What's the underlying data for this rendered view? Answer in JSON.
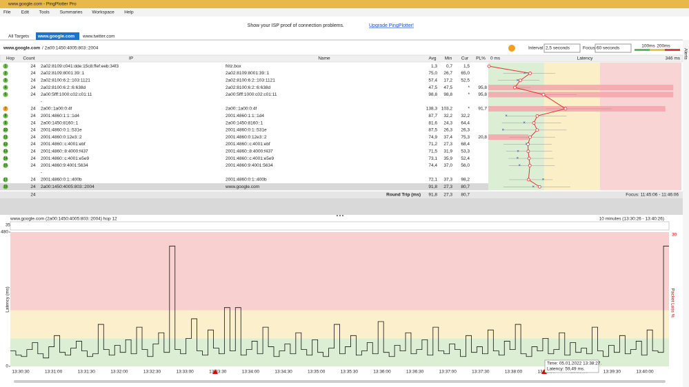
{
  "window": {
    "title": "www.google.com - PingPlotter Pro",
    "menu": [
      "File",
      "Edit",
      "Tools",
      "Summaries",
      "Workspace",
      "Help"
    ]
  },
  "banner": {
    "text": "Show your ISP proof of connection problems.",
    "link": "Upgrade PingPlotter!"
  },
  "tabs": [
    "All Targets",
    "www.google.com",
    "www.twitter.com"
  ],
  "toolbar": {
    "target": "www.google.com",
    "address": "/ 2a00:1450:4005:803::2004",
    "interval_label": "Interval",
    "interval": "2,5 seconds",
    "focus_label": "Focus",
    "focus": "60 seconds",
    "scale": [
      "100ms",
      "200ms"
    ],
    "side": "Alerts"
  },
  "table": {
    "columns": [
      "Hop",
      "Count",
      "IP",
      "Name",
      "Avg",
      "Min",
      "Cur",
      "PL%",
      "0 ms",
      "Latency",
      "346 ms"
    ],
    "rows": [
      [
        "1",
        "24",
        "2a02:8109:c041:dde:15c8:ffef:eeb:34f3",
        "fritz.box",
        "1,3",
        "0,7",
        "1,5",
        ""
      ],
      [
        "2",
        "24",
        "2a02:8109:8001:39::1",
        "2a02:8109:8001:39::1",
        "75,0",
        "26,7",
        "65,0",
        ""
      ],
      [
        "3",
        "24",
        "2a02:8100:6:2::103:1121",
        "2a02:8100:6:2::103:1121",
        "57,4",
        "17,2",
        "52,5",
        ""
      ],
      [
        "4",
        "24",
        "2a02:8100:6:2::6:638d",
        "2a02:8100:6:2::6:638d",
        "47,5",
        "47,5",
        "*",
        "95,8"
      ],
      [
        "5",
        "24",
        "2a00:5fff:1000:c02:c01:11",
        "2a00:5fff:1000:c02:c01:11",
        "98,8",
        "98,8",
        "*",
        "95,8"
      ],
      [
        "",
        "",
        "-",
        "",
        "",
        "",
        "",
        ""
      ],
      [
        "7",
        "24",
        "2a00::1a00:0:4f",
        "2a00::1a00:0:4f",
        "138,3",
        "103,2",
        "*",
        "91,7"
      ],
      [
        "8",
        "24",
        "2001:4860:1:1::1d4",
        "2001:4860:1:1::1d4",
        "87,7",
        "32,2",
        "32,2",
        ""
      ],
      [
        "9",
        "24",
        "2a00:1450:8160::1",
        "2a00:1450:8160::1",
        "81,6",
        "24,3",
        "64,4",
        ""
      ],
      [
        "10",
        "24",
        "2001:4860:0:1::531e",
        "2001:4860:0:1::531e",
        "87,5",
        "26,3",
        "26,3",
        ""
      ],
      [
        "11",
        "24",
        "2001:4860:0:12e3::2",
        "2001:4860:0:12e3::2",
        "74,9",
        "37,4",
        "75,3",
        "20,8"
      ],
      [
        "12",
        "24",
        "2001:4860::c:4001:ebf",
        "2001:4860::c:4001:ebf",
        "71,2",
        "27,3",
        "68,4",
        ""
      ],
      [
        "13",
        "24",
        "2001:4860::8:4000:f437",
        "2001:4860::8:4000:f437",
        "71,5",
        "31,9",
        "53,3",
        ""
      ],
      [
        "14",
        "24",
        "2001:4860::c:4001:e5e9",
        "2001:4860::c:4001:e5e9",
        "73,1",
        "35,9",
        "52,4",
        ""
      ],
      [
        "15",
        "24",
        "2001:4860:9:4001:5634",
        "2001:4860:9:4001:5634",
        "74,4",
        "37,0",
        "56,0",
        ""
      ],
      [
        "",
        "",
        "-",
        "",
        "",
        "",
        "",
        ""
      ],
      [
        "17",
        "24",
        "2001:4860:0:1::400b",
        "2001:4860:0:1::400b",
        "72,1",
        "37,3",
        "98,2",
        ""
      ],
      [
        "18",
        "24",
        "2a00:1450:4005:803::2004",
        "www.google.com",
        "91,8",
        "27,3",
        "80,7",
        ""
      ]
    ],
    "summary": [
      "24",
      "Round Trip (ms)",
      "91,8",
      "27,3",
      "80,7",
      "Focus: 11:45:06 - 11:46:06"
    ]
  },
  "timeline": {
    "header": "www.google.com (2a00:1450:4005:803::2004) hop 12",
    "range": "10 minutes (13:30:26 - 13:40:26)",
    "mini_max": 35,
    "ylabel": "Latency (ms)",
    "y2label": "Packet Loss %",
    "ylim": [
      0,
      480
    ],
    "yticks": [
      0,
      480
    ],
    "y2max": 30,
    "values": [
      55,
      40,
      35,
      60,
      85,
      45,
      30,
      70,
      110,
      50,
      40,
      65,
      90,
      55,
      35,
      45,
      150,
      60,
      40,
      75,
      50,
      95,
      45,
      140,
      60,
      35,
      80,
      120,
      50,
      430,
      60,
      45,
      100,
      170,
      55,
      40,
      130,
      65,
      45,
      210,
      55,
      210,
      40,
      60,
      90,
      45,
      140,
      70,
      35,
      55,
      80,
      45,
      120,
      60,
      40,
      95,
      50,
      35,
      65,
      150,
      45,
      70,
      110,
      40,
      55,
      85,
      45,
      160,
      50,
      35,
      75,
      55,
      120,
      45,
      60,
      95,
      40,
      140,
      55,
      45,
      80,
      60,
      35,
      110,
      50,
      70,
      45,
      130,
      55,
      40,
      90,
      60,
      150,
      45,
      35,
      70,
      55,
      100,
      45,
      60,
      120,
      40,
      85,
      50,
      65,
      45,
      140,
      55,
      35,
      75,
      50,
      110,
      45,
      60,
      90,
      40,
      130,
      55,
      50,
      430
    ],
    "xticks": [
      "13:30:30",
      "13:31:00",
      "13:31:30",
      "13:32:00",
      "13:32:30",
      "13:33:00",
      "13:33:30",
      "13:34:00",
      "13:34:30",
      "13:35:00",
      "13:35:30",
      "13:36:00",
      "13:36:30",
      "13:37:00",
      "13:37:30",
      "13:38:00",
      "13:38:30",
      "13:39:00",
      "13:39:30",
      "13:40:00"
    ],
    "tooltip": [
      "Time: 05.01.2022 13:38:27.",
      "Latency: 59,49 ms."
    ]
  }
}
